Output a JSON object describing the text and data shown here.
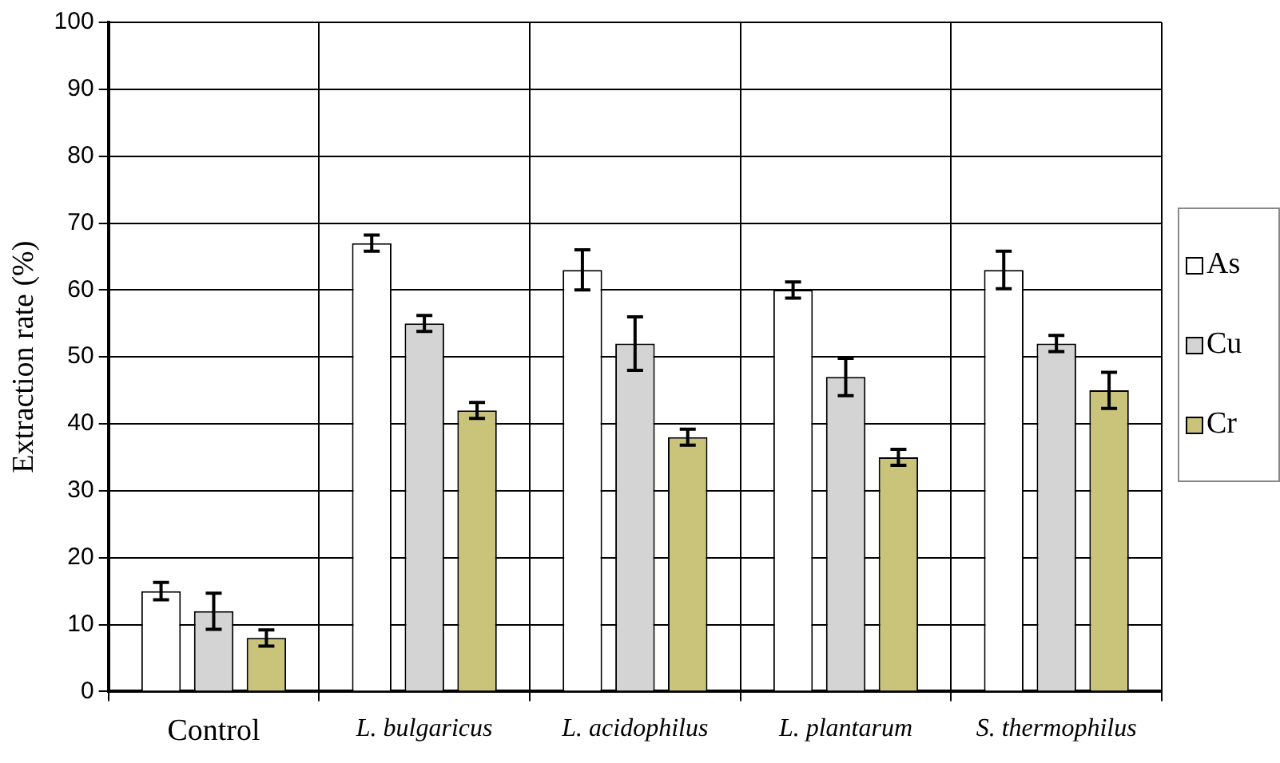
{
  "chart_data": {
    "type": "bar",
    "ylabel": "Extraction rate (%)",
    "categories": [
      "Control",
      "L. bulgaricus",
      "L. acidophilus",
      "L. plantarum",
      "S. thermophilus"
    ],
    "series": [
      {
        "name": "As",
        "color": "#ffffff",
        "values": [
          15,
          67,
          63,
          60,
          63
        ],
        "errors": [
          1.3,
          1.2,
          3,
          1.2,
          2.8
        ]
      },
      {
        "name": "Cu",
        "color": "#d4d4d4",
        "values": [
          12,
          55,
          52,
          47,
          52
        ],
        "errors": [
          2.7,
          1.2,
          4,
          2.8,
          1.2
        ]
      },
      {
        "name": "Cr",
        "color": "#c9c47a",
        "values": [
          8,
          42,
          38,
          35,
          45
        ],
        "errors": [
          1.2,
          1.2,
          1.2,
          1.2,
          2.7
        ]
      }
    ],
    "ylim": [
      0,
      100
    ],
    "yticks": [
      0,
      10,
      20,
      30,
      40,
      50,
      60,
      70,
      80,
      90,
      100
    ],
    "grid": true,
    "legend": "right"
  }
}
